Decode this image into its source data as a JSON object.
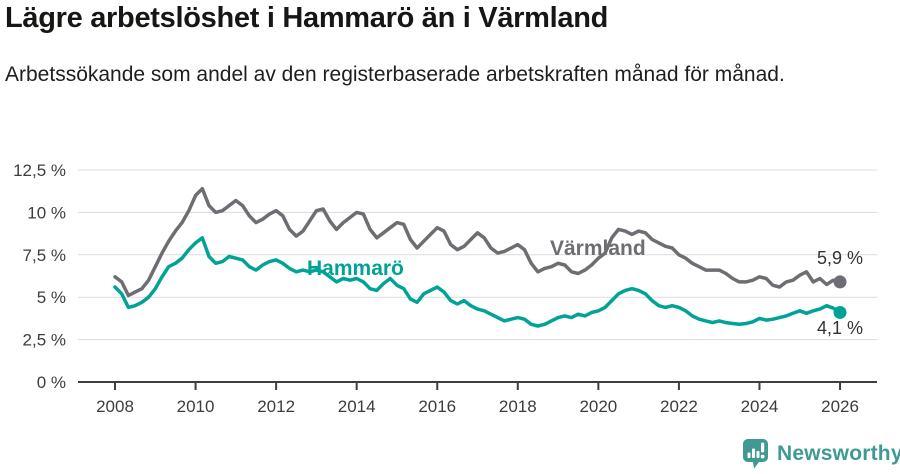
{
  "header": {
    "title": "Lägre arbetslöshet i Hammarö än i Värmland",
    "subtitle": "Arbetssökande som andel av den registerbaserade arbetskraften månad för månad."
  },
  "chart_data": {
    "type": "line",
    "title": "Lägre arbetslöshet i Hammarö än i Värmland",
    "xlabel": "",
    "ylabel": "",
    "grid": true,
    "legend_position": "inline-labels",
    "x_axis": {
      "unit": "year",
      "range": [
        2007.4,
        2026.9
      ],
      "ticks": [
        2008,
        2010,
        2012,
        2014,
        2016,
        2018,
        2020,
        2022,
        2024,
        2026
      ],
      "tick_labels": [
        "2008",
        "2010",
        "2012",
        "2014",
        "2016",
        "2018",
        "2020",
        "2022",
        "2024",
        "2026"
      ]
    },
    "y_axis": {
      "unit": "percent",
      "range": [
        0,
        13.1
      ],
      "ticks": [
        0,
        2.5,
        5,
        7.5,
        10,
        12.5
      ],
      "tick_labels": [
        "0 %",
        "2,5 %",
        "5 %",
        "7,5 %",
        "10 %",
        "12,5 %"
      ]
    },
    "x_start": 2008.0,
    "x_step_years": 0.166667,
    "series": [
      {
        "name": "Värmland",
        "color": "#6d6d73",
        "end_label": "5,9 %",
        "end_value": 5.9,
        "values": [
          6.2,
          5.9,
          5.1,
          5.3,
          5.5,
          6.0,
          6.8,
          7.6,
          8.3,
          8.9,
          9.4,
          10.1,
          11.0,
          11.4,
          10.4,
          10.0,
          10.1,
          10.4,
          10.7,
          10.4,
          9.8,
          9.4,
          9.6,
          9.9,
          10.1,
          9.8,
          9.0,
          8.6,
          8.9,
          9.5,
          10.1,
          10.2,
          9.5,
          9.0,
          9.4,
          9.7,
          10.0,
          9.9,
          9.0,
          8.5,
          8.8,
          9.1,
          9.4,
          9.3,
          8.4,
          7.9,
          8.3,
          8.7,
          9.1,
          8.9,
          8.1,
          7.8,
          8.0,
          8.4,
          8.8,
          8.5,
          7.9,
          7.6,
          7.7,
          7.9,
          8.1,
          7.8,
          7.0,
          6.5,
          6.7,
          6.8,
          7.0,
          6.9,
          6.5,
          6.4,
          6.6,
          6.9,
          7.3,
          7.6,
          8.5,
          9.0,
          8.9,
          8.7,
          8.9,
          8.8,
          8.4,
          8.2,
          8.0,
          7.9,
          7.5,
          7.3,
          7.0,
          6.8,
          6.6,
          6.6,
          6.6,
          6.4,
          6.1,
          5.9,
          5.9,
          6.0,
          6.2,
          6.1,
          5.7,
          5.6,
          5.9,
          6.0,
          6.3,
          6.5,
          5.9,
          6.1,
          5.75,
          6.0,
          5.9
        ]
      },
      {
        "name": "Hammarö",
        "color": "#00a396",
        "end_label": "4,1 %",
        "end_value": 4.1,
        "values": [
          5.6,
          5.2,
          4.4,
          4.5,
          4.7,
          5.0,
          5.5,
          6.2,
          6.8,
          7.0,
          7.3,
          7.8,
          8.2,
          8.5,
          7.4,
          7.0,
          7.1,
          7.4,
          7.3,
          7.2,
          6.8,
          6.6,
          6.9,
          7.1,
          7.2,
          7.0,
          6.7,
          6.5,
          6.6,
          6.5,
          6.6,
          6.5,
          6.2,
          5.9,
          6.1,
          6.0,
          6.1,
          5.9,
          5.5,
          5.4,
          5.8,
          6.1,
          5.7,
          5.5,
          4.9,
          4.7,
          5.2,
          5.4,
          5.6,
          5.3,
          4.8,
          4.6,
          4.8,
          4.5,
          4.3,
          4.2,
          4.0,
          3.8,
          3.6,
          3.7,
          3.8,
          3.7,
          3.4,
          3.3,
          3.4,
          3.6,
          3.8,
          3.9,
          3.8,
          4.0,
          3.9,
          4.1,
          4.2,
          4.4,
          4.8,
          5.2,
          5.4,
          5.5,
          5.4,
          5.2,
          4.8,
          4.5,
          4.4,
          4.5,
          4.4,
          4.2,
          3.9,
          3.7,
          3.6,
          3.5,
          3.6,
          3.5,
          3.45,
          3.4,
          3.45,
          3.55,
          3.75,
          3.65,
          3.7,
          3.8,
          3.9,
          4.05,
          4.2,
          4.05,
          4.2,
          4.3,
          4.5,
          4.35,
          4.1
        ]
      }
    ]
  },
  "footer": {
    "brand": "Newsworthy",
    "brand_color": "#3f9a94"
  }
}
